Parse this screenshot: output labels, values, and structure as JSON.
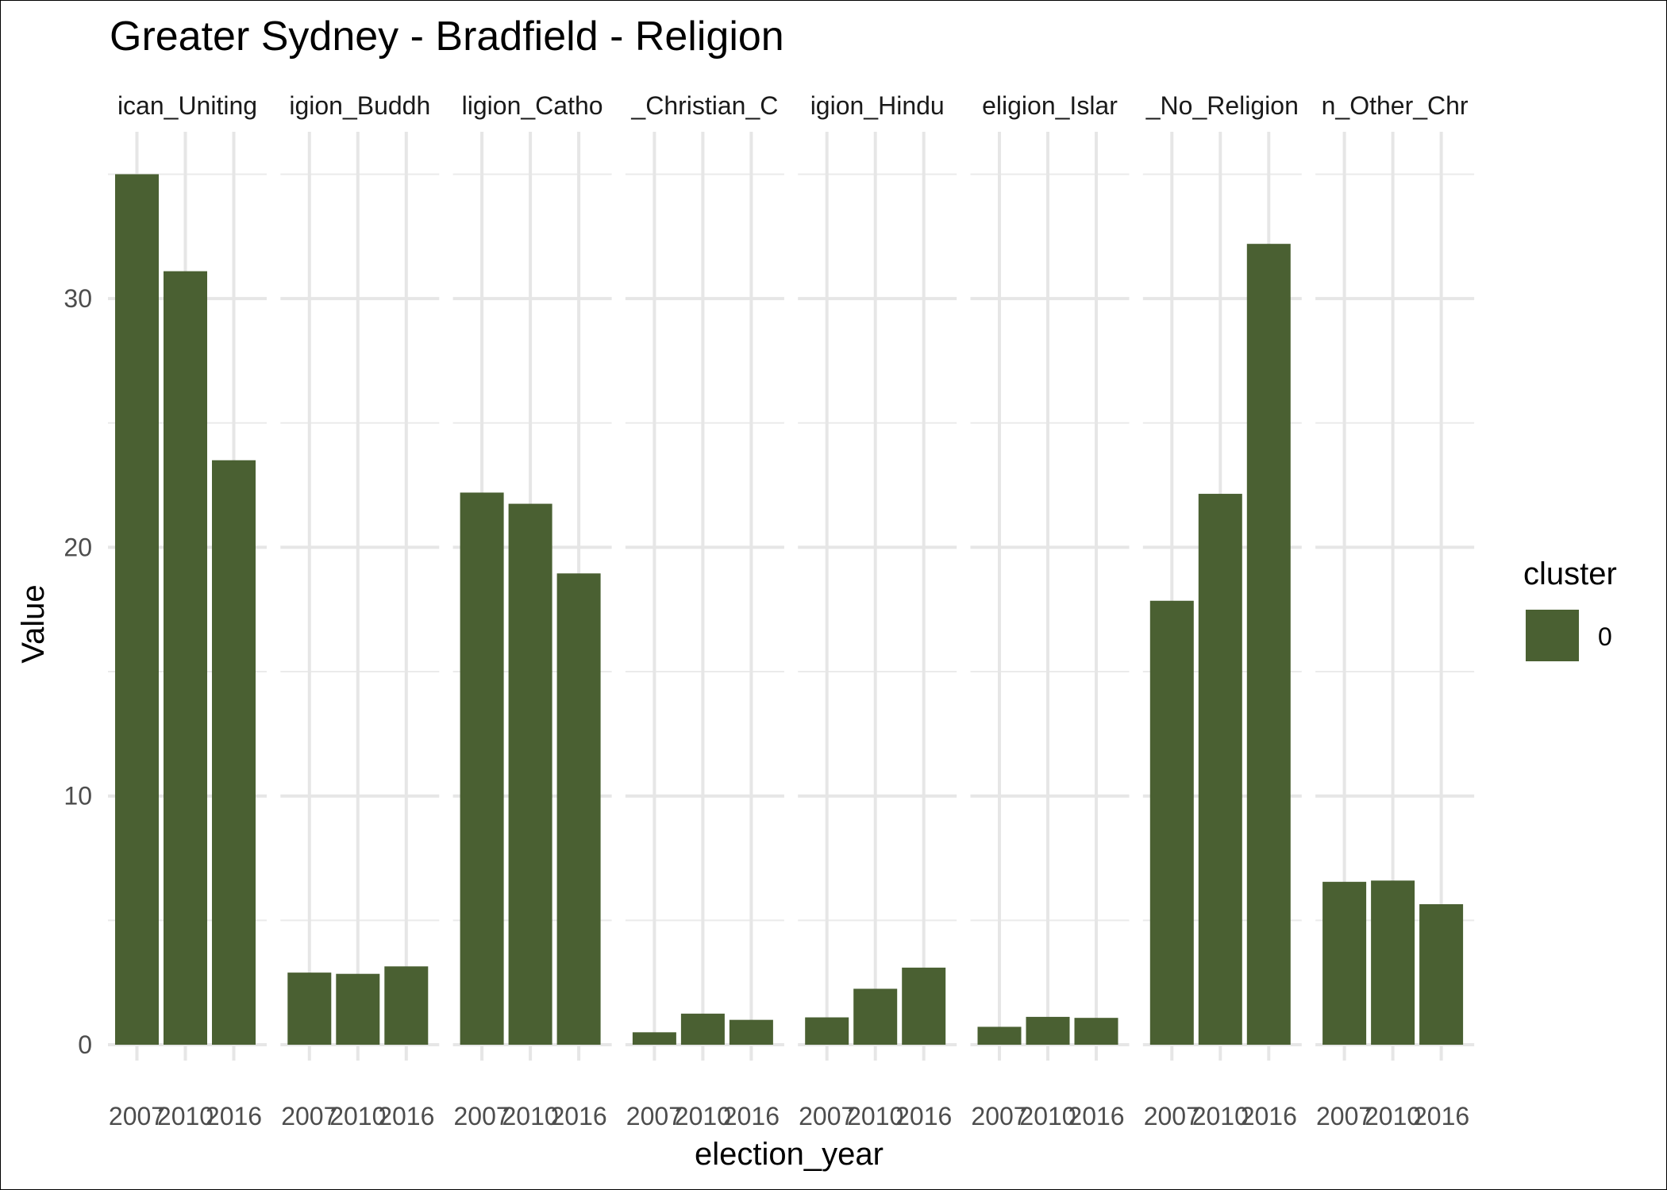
{
  "chart_data": {
    "type": "bar",
    "title": "Greater Sydney - Bradfield - Religion",
    "xlabel": "election_year",
    "ylabel": "Value",
    "ylim": [
      0,
      36
    ],
    "y_ticks": [
      0,
      10,
      20,
      30
    ],
    "grid": true,
    "legend": {
      "title": "cluster",
      "placement": "right",
      "entries": [
        {
          "label": "0",
          "color": "#4a6032"
        }
      ]
    },
    "bar_color": "#4a6032",
    "x_tick_labels": [
      "2007",
      "2010",
      "2016"
    ],
    "facets": [
      {
        "strip": "ican_Uniting",
        "values": [
          35.0,
          31.1,
          23.5
        ]
      },
      {
        "strip": "igion_Buddh",
        "values": [
          2.9,
          2.85,
          3.15
        ]
      },
      {
        "strip": "ligion_Catho",
        "values": [
          22.2,
          21.75,
          18.95
        ]
      },
      {
        "strip": "_Christian_C",
        "values": [
          0.5,
          1.25,
          1.0
        ]
      },
      {
        "strip": "igion_Hindu",
        "values": [
          1.1,
          2.25,
          3.1
        ]
      },
      {
        "strip": "eligion_Islar",
        "values": [
          0.72,
          1.12,
          1.08
        ]
      },
      {
        "strip": "_No_Religion",
        "values": [
          17.85,
          22.15,
          32.2
        ]
      },
      {
        "strip": "n_Other_Chr",
        "values": [
          6.55,
          6.6,
          5.65
        ]
      }
    ]
  }
}
